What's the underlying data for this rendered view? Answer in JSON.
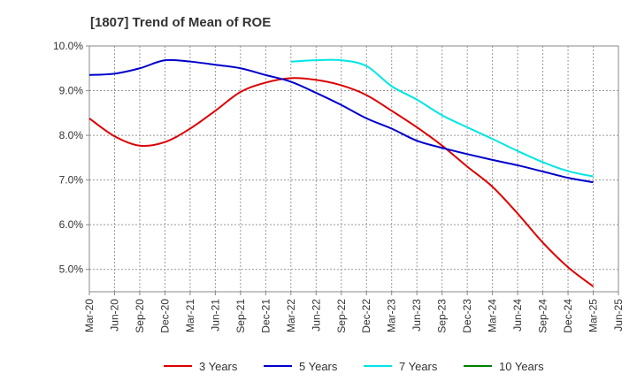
{
  "chart_data": {
    "type": "line",
    "title": "[1807]  Trend of Mean of ROE",
    "xlabel": "",
    "ylabel": "",
    "ylim": [
      4.5,
      10.0
    ],
    "y_ticks": [
      5.0,
      6.0,
      7.0,
      8.0,
      9.0,
      10.0
    ],
    "y_tick_labels": [
      "5.0%",
      "6.0%",
      "7.0%",
      "8.0%",
      "9.0%",
      "10.0%"
    ],
    "x_tick_labels": [
      "Mar-20",
      "Jun-20",
      "Sep-20",
      "Dec-20",
      "Mar-21",
      "Jun-21",
      "Sep-21",
      "Dec-21",
      "Mar-22",
      "Jun-22",
      "Sep-22",
      "Dec-22",
      "Mar-23",
      "Jun-23",
      "Sep-23",
      "Dec-23",
      "Mar-24",
      "Jun-24",
      "Sep-24",
      "Dec-24",
      "Mar-25",
      "Jun-25"
    ],
    "grid": true,
    "legend_position": "bottom",
    "series": [
      {
        "name": "3 Years",
        "color": "#dd0000",
        "values": [
          8.38,
          7.98,
          7.77,
          7.85,
          8.15,
          8.55,
          8.97,
          9.18,
          9.28,
          9.24,
          9.12,
          8.9,
          8.55,
          8.18,
          7.77,
          7.3,
          6.85,
          6.25,
          5.6,
          5.05,
          4.62,
          null
        ]
      },
      {
        "name": "5 Years",
        "color": "#0000cc",
        "values": [
          9.35,
          9.38,
          9.5,
          9.68,
          9.65,
          9.58,
          9.5,
          9.35,
          9.2,
          8.95,
          8.68,
          8.38,
          8.15,
          7.88,
          7.72,
          7.58,
          7.45,
          7.33,
          7.19,
          7.05,
          6.95,
          null
        ]
      },
      {
        "name": "7 Years",
        "color": "#00e5e5",
        "values": [
          null,
          null,
          null,
          null,
          null,
          null,
          null,
          null,
          9.65,
          9.68,
          9.68,
          9.55,
          9.1,
          8.8,
          8.45,
          8.18,
          7.92,
          7.65,
          7.4,
          7.2,
          7.08,
          null
        ]
      },
      {
        "name": "10 Years",
        "color": "#008000",
        "values": []
      }
    ]
  }
}
